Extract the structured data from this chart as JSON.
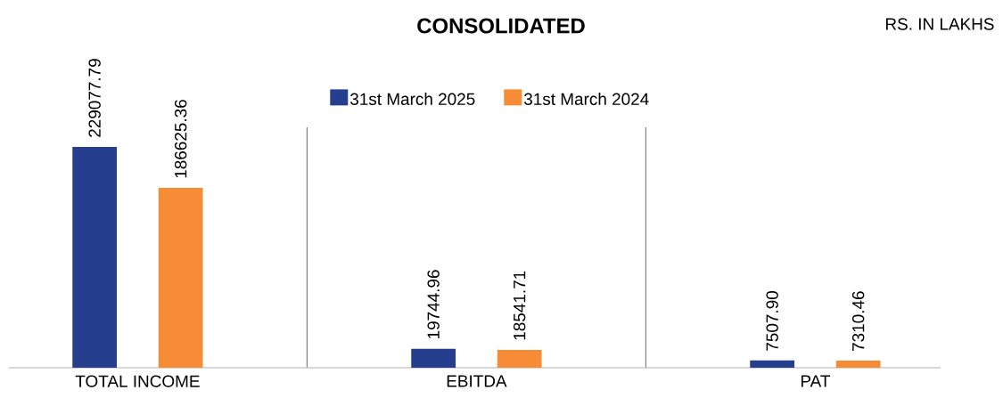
{
  "chart_data": {
    "type": "bar",
    "title": "CONSOLIDATED",
    "annotations": [
      "RS. IN LAKHS"
    ],
    "categories": [
      "TOTAL INCOME",
      "EBITDA",
      "PAT"
    ],
    "series": [
      {
        "name": "31st March 2025",
        "color": "#253f8e",
        "values": [
          229077.79,
          19744.96,
          7507.9
        ],
        "value_labels": [
          "229077.79",
          "19744.96",
          "7507.90"
        ]
      },
      {
        "name": "31st March 2024",
        "color": "#f68d36",
        "values": [
          186625.36,
          18541.71,
          7310.46
        ],
        "value_labels": [
          "186625.36",
          "18541.71",
          "7310.46"
        ]
      }
    ],
    "legend": "top"
  }
}
